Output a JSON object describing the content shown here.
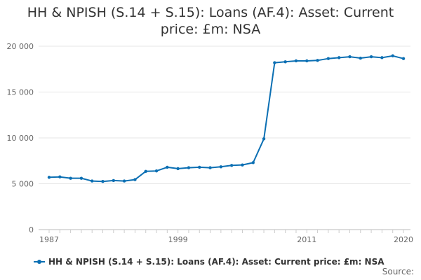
{
  "chart_data": {
    "type": "line",
    "title_line1": "HH & NPISH (S.14 + S.15): Loans (AF.4): Asset: Current",
    "title_line2": "price: £m: NSA",
    "xlabel": "",
    "ylabel": "",
    "x_tick_labels": [
      "1987",
      "1999",
      "2011",
      "2020"
    ],
    "y_tick_labels": [
      "0",
      "5 000",
      "10 000",
      "15 000",
      "20 000"
    ],
    "y_ticks": [
      0,
      5000,
      10000,
      15000,
      20000
    ],
    "x_range": [
      1987,
      2020
    ],
    "ylim": [
      0,
      20000
    ],
    "grid": "horizontal",
    "legend_position": "bottom",
    "color": "#0b6fb3",
    "series": [
      {
        "name": "HH & NPISH (S.14 + S.15): Loans (AF.4): Asset: Current price: £m: NSA",
        "x": [
          1987,
          1988,
          1989,
          1990,
          1991,
          1992,
          1993,
          1994,
          1995,
          1996,
          1997,
          1998,
          1999,
          2000,
          2001,
          2002,
          2003,
          2004,
          2005,
          2006,
          2007,
          2008,
          2009,
          2010,
          2011,
          2012,
          2013,
          2014,
          2015,
          2016,
          2017,
          2018,
          2019,
          2020
        ],
        "values": [
          5700,
          5750,
          5600,
          5600,
          5300,
          5250,
          5350,
          5300,
          5450,
          6350,
          6400,
          6800,
          6650,
          6750,
          6800,
          6750,
          6850,
          7000,
          7050,
          7300,
          9900,
          18200,
          18300,
          18400,
          18400,
          18450,
          18650,
          18750,
          18850,
          18700,
          18850,
          18750,
          18950,
          18650
        ]
      }
    ]
  },
  "legend": {
    "label": "HH & NPISH (S.14 + S.15): Loans (AF.4): Asset: Current price: £m: NSA"
  },
  "source_label": "Source:"
}
